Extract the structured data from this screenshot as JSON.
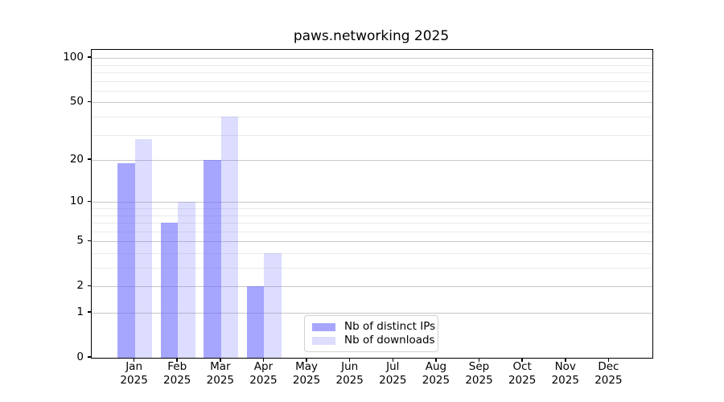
{
  "chart_data": {
    "type": "bar",
    "title": "paws.networking 2025",
    "categories": [
      "Jan",
      "Feb",
      "Mar",
      "Apr",
      "May",
      "Jun",
      "Jul",
      "Aug",
      "Sep",
      "Oct",
      "Nov",
      "Dec"
    ],
    "category_year": "2025",
    "series": [
      {
        "name": "Nb of distinct IPs",
        "color_key": "distinct_ips",
        "values": [
          19,
          7,
          20,
          2,
          0,
          0,
          0,
          0,
          0,
          0,
          0,
          0
        ]
      },
      {
        "name": "Nb of downloads",
        "color_key": "downloads",
        "values": [
          28,
          10,
          40,
          4,
          0,
          0,
          0,
          0,
          0,
          0,
          0,
          0
        ]
      }
    ],
    "y_axis": {
      "scale": "log1p",
      "major_ticks": [
        0,
        1,
        2,
        5,
        10,
        20,
        50,
        100
      ],
      "minor_gridlines": [
        3,
        4,
        6,
        7,
        8,
        9,
        30,
        40,
        60,
        70,
        80,
        90
      ],
      "ylim": [
        0,
        113
      ]
    },
    "grid": "on",
    "legend_position": "lower center, inside plot"
  },
  "colors": {
    "distinct_ips": "rgba(102,102,255,0.58)",
    "downloads": "rgba(102,102,255,0.22)",
    "grid_major": "#c8c8c8",
    "grid_minor": "#eaeaea",
    "spine": "#000000",
    "legend_border": "#d2d2d2"
  }
}
